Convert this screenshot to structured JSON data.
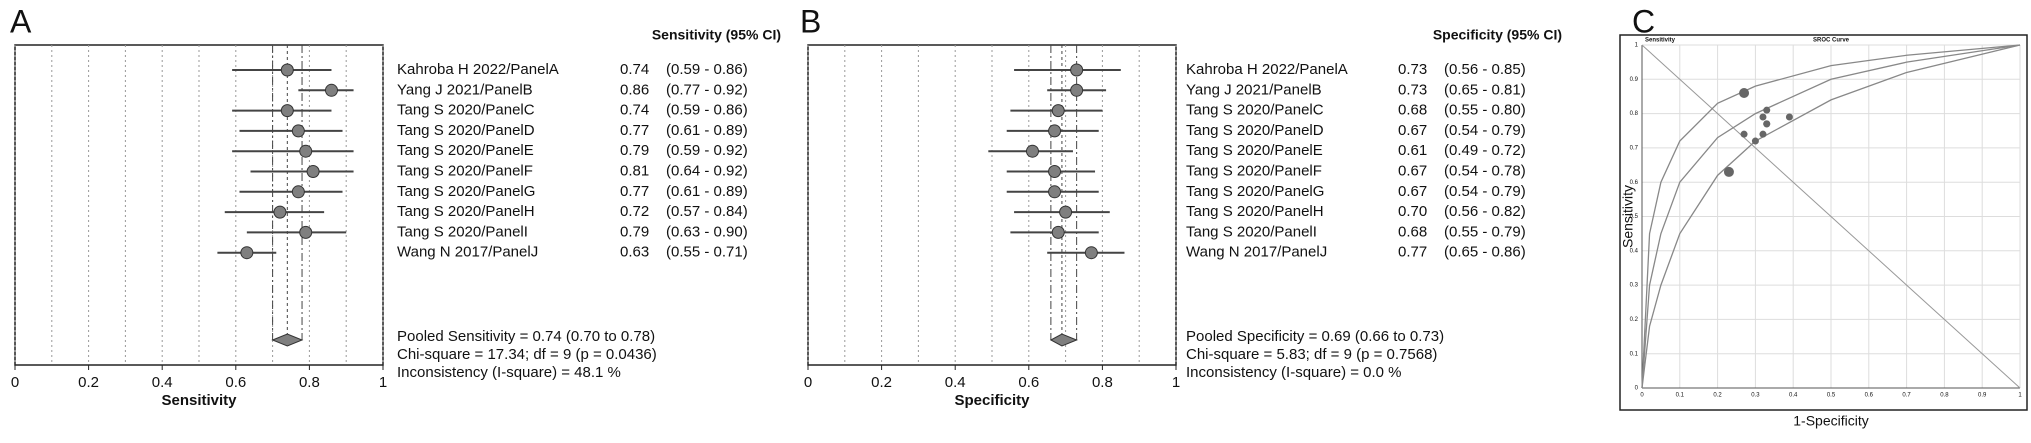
{
  "chart_data": [
    {
      "type": "forest",
      "panel_label": "A",
      "title": "Sensitivity (95% CI)",
      "xlabel": "Sensitivity",
      "categories": [
        "Kahroba H 2022/PanelA",
        "Yang J 2021/PanelB",
        "Tang S 2020/PanelC",
        "Tang S 2020/PanelD",
        "Tang S 2020/PanelE",
        "Tang S 2020/PanelF",
        "Tang S 2020/PanelG",
        "Tang S 2020/PanelH",
        "Tang S 2020/PanelI",
        "Wang N 2017/PanelJ"
      ],
      "values": [
        0.74,
        0.86,
        0.74,
        0.77,
        0.79,
        0.81,
        0.77,
        0.72,
        0.79,
        0.63
      ],
      "value_labels": [
        "0.74",
        "0.86",
        "0.74",
        "0.77",
        "0.79",
        "0.81",
        "0.77",
        "0.72",
        "0.79",
        "0.63"
      ],
      "ci_lower": [
        0.59,
        0.77,
        0.59,
        0.61,
        0.59,
        0.64,
        0.61,
        0.57,
        0.63,
        0.55
      ],
      "ci_upper": [
        0.86,
        0.92,
        0.86,
        0.89,
        0.92,
        0.92,
        0.89,
        0.84,
        0.9,
        0.71
      ],
      "ci_labels": [
        "(0.59 - 0.86)",
        "(0.77 - 0.92)",
        "(0.59 - 0.86)",
        "(0.61 - 0.89)",
        "(0.59 - 0.92)",
        "(0.64 - 0.92)",
        "(0.61 - 0.89)",
        "(0.57 - 0.84)",
        "(0.63 - 0.90)",
        "(0.55 - 0.71)"
      ],
      "pooled": {
        "value": 0.74,
        "lower": 0.7,
        "upper": 0.78
      },
      "stats": [
        "Pooled Sensitivity = 0.74 (0.70 to 0.78)",
        "Chi-square = 17.34; df =  9 (p = 0.0436)",
        "Inconsistency (I-square) = 48.1 %"
      ],
      "xlim": [
        0,
        1
      ],
      "xticks": [
        0,
        0.2,
        0.4,
        0.6,
        0.8,
        1
      ],
      "minor_xticks": [
        0.1,
        0.3,
        0.5,
        0.7,
        0.9
      ],
      "grid": true,
      "color": "#7f7f7f"
    },
    {
      "type": "forest",
      "panel_label": "B",
      "title": "Specificity (95% CI)",
      "xlabel": "Specificity",
      "categories": [
        "Kahroba H 2022/PanelA",
        "Yang J 2021/PanelB",
        "Tang S 2020/PanelC",
        "Tang S 2020/PanelD",
        "Tang S 2020/PanelE",
        "Tang S 2020/PanelF",
        "Tang S 2020/PanelG",
        "Tang S 2020/PanelH",
        "Tang S 2020/PanelI",
        "Wang N 2017/PanelJ"
      ],
      "values": [
        0.73,
        0.73,
        0.68,
        0.67,
        0.61,
        0.67,
        0.67,
        0.7,
        0.68,
        0.77
      ],
      "value_labels": [
        "0.73",
        "0.73",
        "0.68",
        "0.67",
        "0.61",
        "0.67",
        "0.67",
        "0.70",
        "0.68",
        "0.77"
      ],
      "ci_lower": [
        0.56,
        0.65,
        0.55,
        0.54,
        0.49,
        0.54,
        0.54,
        0.56,
        0.55,
        0.65
      ],
      "ci_upper": [
        0.85,
        0.81,
        0.8,
        0.79,
        0.72,
        0.78,
        0.79,
        0.82,
        0.79,
        0.86
      ],
      "ci_labels": [
        "(0.56 - 0.85)",
        "(0.65 - 0.81)",
        "(0.55 - 0.80)",
        "(0.54 - 0.79)",
        "(0.49 - 0.72)",
        "(0.54 - 0.78)",
        "(0.54 - 0.79)",
        "(0.56 - 0.82)",
        "(0.55 - 0.79)",
        "(0.65 - 0.86)"
      ],
      "pooled": {
        "value": 0.69,
        "lower": 0.66,
        "upper": 0.73
      },
      "stats": [
        "Pooled Specificity = 0.69 (0.66 to 0.73)",
        "Chi-square = 5.83; df =  9 (p = 0.7568)",
        "Inconsistency (I-square) = 0.0 %"
      ],
      "xlim": [
        0,
        1
      ],
      "xticks": [
        0,
        0.2,
        0.4,
        0.6,
        0.8,
        1
      ],
      "minor_xticks": [
        0.1,
        0.3,
        0.5,
        0.7,
        0.9
      ],
      "grid": true,
      "color": "#7f7f7f"
    },
    {
      "type": "sroc",
      "panel_label": "C",
      "title": "SROC Curve",
      "corner_label": "Sensitivity",
      "xlabel": "1-Specificity",
      "ylabel": "Sensitivity",
      "x": [
        0.27,
        0.27,
        0.32,
        0.33,
        0.39,
        0.33,
        0.33,
        0.3,
        0.32,
        0.23
      ],
      "y": [
        0.74,
        0.86,
        0.74,
        0.77,
        0.79,
        0.81,
        0.77,
        0.72,
        0.79,
        0.63
      ],
      "curves": [
        {
          "x": [
            0,
            0.02,
            0.05,
            0.1,
            0.2,
            0.3,
            0.5,
            0.7,
            1
          ],
          "y": [
            0,
            0.45,
            0.6,
            0.72,
            0.83,
            0.88,
            0.94,
            0.97,
            1
          ]
        },
        {
          "x": [
            0,
            0.02,
            0.05,
            0.1,
            0.2,
            0.3,
            0.5,
            0.7,
            1
          ],
          "y": [
            0,
            0.3,
            0.45,
            0.6,
            0.73,
            0.8,
            0.9,
            0.95,
            1
          ]
        },
        {
          "x": [
            0,
            0.02,
            0.05,
            0.1,
            0.2,
            0.3,
            0.5,
            0.7,
            1
          ],
          "y": [
            0,
            0.18,
            0.3,
            0.45,
            0.62,
            0.72,
            0.84,
            0.92,
            1
          ]
        }
      ],
      "xlim": [
        0,
        1
      ],
      "ylim": [
        0,
        1
      ],
      "xticks": [
        0,
        0.1,
        0.2,
        0.3,
        0.4,
        0.5,
        0.6,
        0.7,
        0.8,
        0.9,
        1
      ],
      "yticks": [
        0,
        0.1,
        0.2,
        0.3,
        0.4,
        0.5,
        0.6,
        0.7,
        0.8,
        0.9,
        1
      ],
      "grid": true,
      "color": "#666666"
    }
  ]
}
